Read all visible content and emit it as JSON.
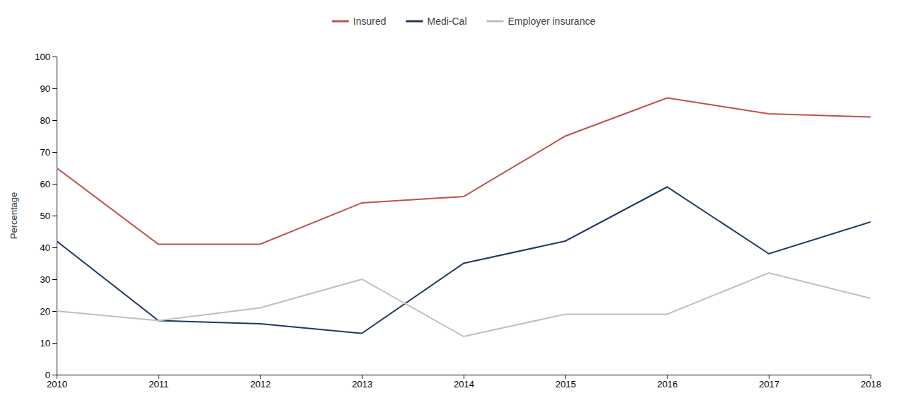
{
  "chart_data": {
    "type": "line",
    "y_label": "Percentage",
    "x": [
      2010,
      2011,
      2012,
      2013,
      2014,
      2015,
      2016,
      2017,
      2018
    ],
    "xlim": [
      2010,
      2018
    ],
    "xticks": [
      2010,
      2011,
      2012,
      2013,
      2014,
      2015,
      2016,
      2017,
      2018
    ],
    "ylim": [
      0,
      100
    ],
    "yticks": [
      0,
      10,
      20,
      30,
      40,
      50,
      60,
      70,
      80,
      90,
      100
    ],
    "grid": false,
    "legend": "top",
    "series": [
      {
        "name": "Insured",
        "color": "#C0504D",
        "values": [
          65,
          41,
          41,
          54,
          56,
          75,
          87,
          82,
          81
        ]
      },
      {
        "name": "Medi-Cal",
        "color": "#1F3864",
        "values": [
          42,
          17,
          16,
          13,
          35,
          42,
          59,
          38,
          48
        ]
      },
      {
        "name": "Employer insurance",
        "color": "#BFBFBF",
        "values": [
          20,
          17,
          21,
          30,
          12,
          19,
          19,
          32,
          24
        ]
      }
    ]
  }
}
